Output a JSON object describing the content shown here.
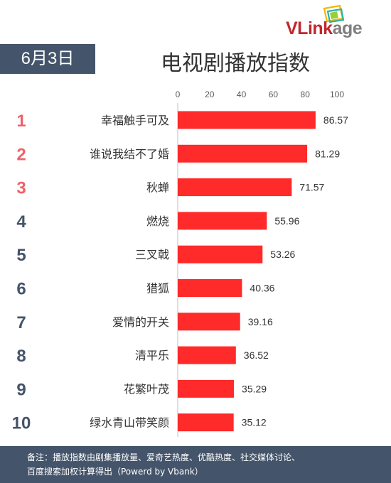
{
  "brand": {
    "logo_text_a": "VLink",
    "logo_text_b": "age",
    "color_a": "#c0282d",
    "color_b": "#7f7f7f"
  },
  "date_label": "6月3日",
  "title": "电视剧播放指数",
  "colors": {
    "bar": "#ff2a2a",
    "rank_top": "#f0606a",
    "rank_other": "#44546a",
    "badge_bg": "#44546a"
  },
  "chart_data": {
    "type": "bar",
    "orientation": "horizontal",
    "title": "电视剧播放指数",
    "xlim": [
      0,
      100
    ],
    "x_ticks": [
      "0",
      "20",
      "40",
      "60",
      "80",
      "100"
    ],
    "ranks": [
      "1",
      "2",
      "3",
      "4",
      "5",
      "6",
      "7",
      "8",
      "9",
      "10"
    ],
    "categories": [
      "幸福触手可及",
      "谁说我结不了婚",
      "秋蝉",
      "燃烧",
      "三叉戟",
      "猎狐",
      "爱情的开关",
      "清平乐",
      "花繁叶茂",
      "绿水青山带笑颜"
    ],
    "values": [
      86.57,
      81.29,
      71.57,
      55.96,
      53.26,
      40.36,
      39.16,
      36.52,
      35.29,
      35.12
    ],
    "value_labels": [
      "86.57",
      "81.29",
      "71.57",
      "55.96",
      "53.26",
      "40.36",
      "39.16",
      "36.52",
      "35.29",
      "35.12"
    ],
    "grid": false,
    "legend": "none"
  },
  "footer": {
    "line1": "备注：播放指数由剧集播放量、爱奇艺热度、优酷热度、社交媒体讨论、",
    "line2": "百度搜索加权计算得出（Powerd by Vbank）"
  }
}
